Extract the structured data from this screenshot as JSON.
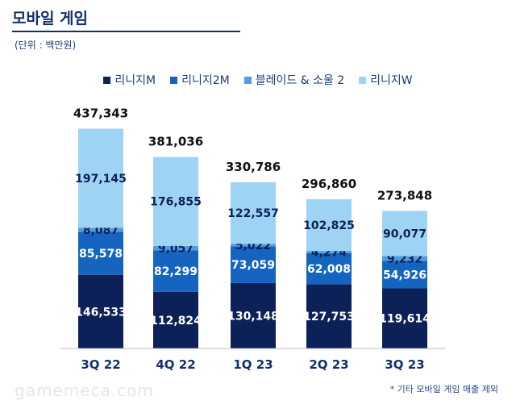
{
  "page": {
    "title": "모바일 게임",
    "unit": "(단위 : 백만원)",
    "footnote": "* 기타 모바일 게임 매출 제외",
    "watermark": "gamemeca.com"
  },
  "colors": {
    "lineage_m": "#0d2159",
    "lineage_2m": "#1565c0",
    "blade_soul_2": "#4f9fe0",
    "lineage_w": "#9fd3f3"
  },
  "chart_data": {
    "type": "bar",
    "stacked": true,
    "title": "모바일 게임",
    "categories": [
      "3Q 22",
      "4Q 22",
      "1Q 23",
      "2Q 23",
      "3Q 23"
    ],
    "series": [
      {
        "key": "lineage_m",
        "name": "리니지M",
        "values": [
          146533,
          112824,
          130148,
          127753,
          119614
        ]
      },
      {
        "key": "lineage_2m",
        "name": "리니지2M",
        "values": [
          85578,
          82299,
          73059,
          62008,
          54926
        ]
      },
      {
        "key": "blade_soul_2",
        "name": "블레이드 & 소울 2",
        "values": [
          8087,
          9057,
          5022,
          4274,
          9232
        ]
      },
      {
        "key": "lineage_w",
        "name": "리니지W",
        "values": [
          197145,
          176855,
          122557,
          102825,
          90077
        ]
      }
    ],
    "totals": [
      437343,
      381036,
      330786,
      296860,
      273848
    ],
    "segment_labels": [
      [
        "146,533",
        "85,578",
        "8,087",
        "197,145"
      ],
      [
        "112,824",
        "82,299",
        "9,057",
        "176,855"
      ],
      [
        "130,148",
        "73,059",
        "5,022",
        "122,557"
      ],
      [
        "127,753",
        "62,008",
        "4,274",
        "102,825"
      ],
      [
        "119,614",
        "54,926",
        "9,232",
        "90,077"
      ]
    ],
    "total_labels": [
      "437,343",
      "381,036",
      "330,786",
      "296,860",
      "273,848"
    ],
    "ylim": [
      0,
      500000
    ],
    "xlabel": "",
    "ylabel": "",
    "grid": false,
    "legend_position": "top-center"
  }
}
